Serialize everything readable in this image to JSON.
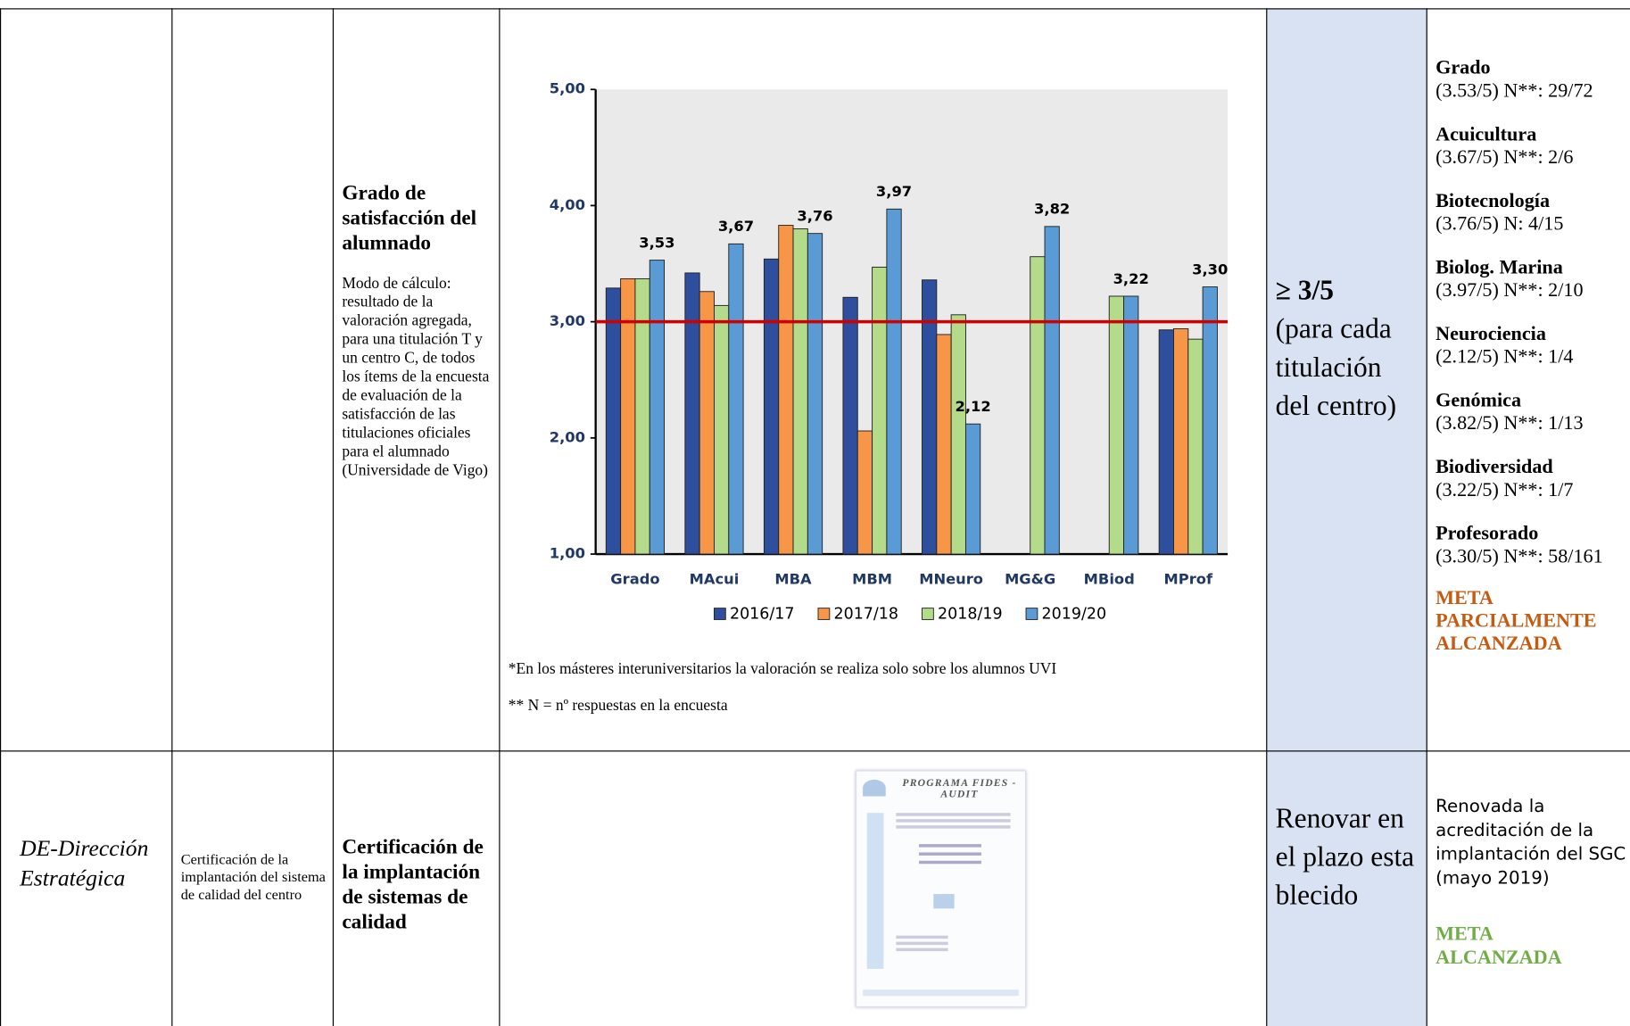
{
  "table": {
    "row1": {
      "indicator_title": "Grado de satisfacción del alumnado",
      "calculation": "Modo de cálculo: resultado de la valoración agregada, para una titulación T y un centro C, de todos los ítems de la encuesta de evaluación de la satisfacción de las titulaciones oficiales para el alumnado (Universidade de Vigo)",
      "notes": [
        "*En los másteres interuniversitarios la valoración se realiza solo sobre los alumnos UVI",
        "** N = nº respuestas en la encuesta"
      ],
      "target_main": "≥ 3/5",
      "target_note": "(para cada titulación del centro)",
      "results": [
        {
          "name": "Grado",
          "detail": "(3.53/5) N**: 29/72"
        },
        {
          "name": "Acuicultura",
          "detail": "(3.67/5) N**: 2/6"
        },
        {
          "name": "Biotecnología",
          "detail": "(3.76/5) N: 4/15"
        },
        {
          "name": "Biolog. Marina",
          "detail": "(3.97/5) N**: 2/10"
        },
        {
          "name": "Neurociencia",
          "detail": "(2.12/5) N**: 1/4"
        },
        {
          "name": "Genómica",
          "detail": "(3.82/5) N**: 1/13"
        },
        {
          "name": "Biodiversidad",
          "detail": "(3.22/5) N**: 1/7"
        },
        {
          "name": "Profesorado",
          "detail": "(3.30/5) N**: 58/161"
        }
      ],
      "status": "META PARCIALMENTE ALCANZADA"
    },
    "row2": {
      "area": "DE-Dirección Estratégica",
      "objective": "Certificación de la implantación del sistema de calidad del centro",
      "indicator_title": "Certificación de la implantación de sistemas de calidad",
      "certificate_title": "PROGRAMA FIDES - AUDIT",
      "target": "Renovar en el plazo establecido",
      "result": "Renovada la acreditación de la implantación del SGC (mayo 2019)",
      "status": "META ALCANZADA"
    }
  },
  "chart_data": {
    "type": "bar",
    "categories": [
      "Grado",
      "MAcui",
      "MBA",
      "MBM",
      "MNeuro",
      "MG&G",
      "MBiod",
      "MProf"
    ],
    "series": [
      {
        "name": "2016/17",
        "color": "#2E4E9E",
        "values": [
          3.29,
          3.42,
          3.54,
          3.21,
          3.36,
          null,
          null,
          2.93
        ]
      },
      {
        "name": "2017/18",
        "color": "#F79646",
        "values": [
          3.37,
          3.26,
          3.83,
          2.06,
          2.89,
          null,
          null,
          2.94
        ]
      },
      {
        "name": "2018/19",
        "color": "#B3DB8A",
        "values": [
          3.37,
          3.14,
          3.8,
          3.47,
          3.06,
          3.56,
          3.22,
          2.85
        ]
      },
      {
        "name": "2019/20",
        "color": "#5B9BD5",
        "values": [
          3.53,
          3.67,
          3.76,
          3.97,
          2.12,
          3.82,
          3.22,
          3.3
        ],
        "value_labels": [
          "3,53",
          "3,67",
          "3,76",
          "3,97",
          "2,12",
          "3,82",
          "3,22",
          "3,30"
        ]
      }
    ],
    "ylim": [
      1,
      5
    ],
    "yticks": [
      {
        "value": 1,
        "label": "1,00"
      },
      {
        "value": 2,
        "label": "2,00"
      },
      {
        "value": 3,
        "label": "3,00"
      },
      {
        "value": 4,
        "label": "4,00"
      },
      {
        "value": 5,
        "label": "5,00"
      }
    ],
    "reference_line": {
      "value": 3,
      "color": "#D00000"
    },
    "grid": false,
    "legend": "bottom"
  }
}
